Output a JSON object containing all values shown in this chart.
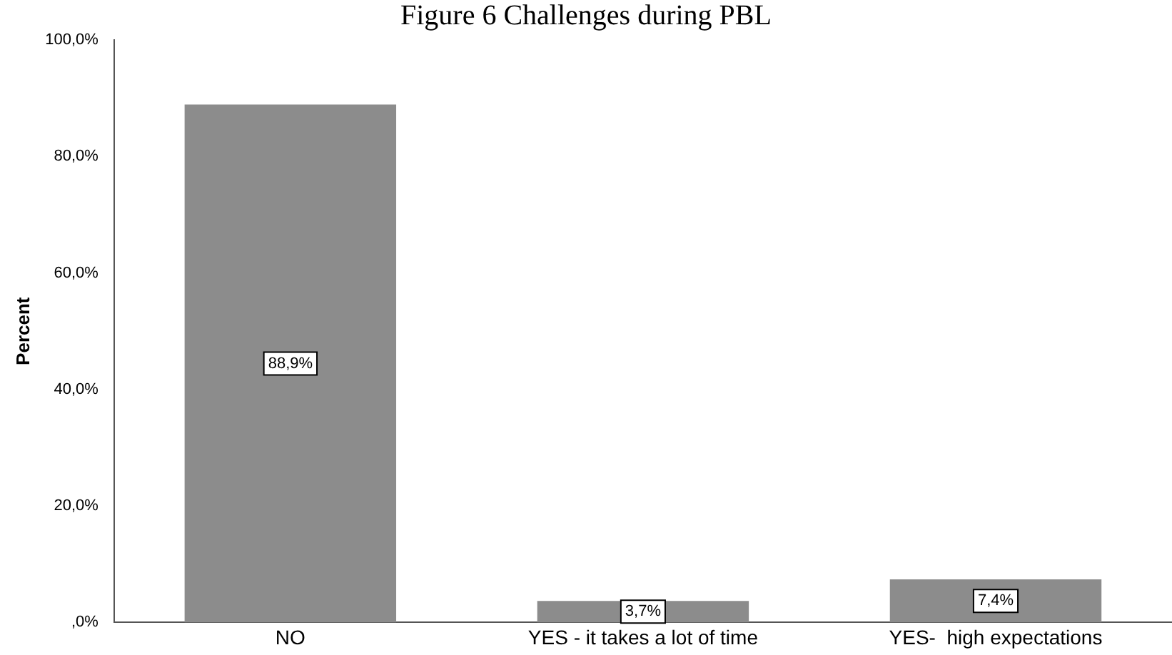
{
  "chart_data": {
    "type": "bar",
    "title": "Figure 6 Challenges during PBL",
    "ylabel": "Percent",
    "categories": [
      "NO",
      "YES - it takes a lot of time",
      "YES-  high expectations"
    ],
    "values": [
      88.9,
      3.7,
      7.4
    ],
    "color": "#8c8c8c",
    "value_labels": [
      "88,9%",
      "3,7%",
      "7,4%"
    ],
    "ylim": [
      0,
      100
    ],
    "yticks": [
      {
        "value": 0,
        "label": ",0%"
      },
      {
        "value": 20,
        "label": "20,0%"
      },
      {
        "value": 40,
        "label": "40,0%"
      },
      {
        "value": 60,
        "label": "60,0%"
      },
      {
        "value": 80,
        "label": "80,0%"
      },
      {
        "value": 100,
        "label": "100,0%"
      }
    ],
    "grid": false,
    "legend": false
  }
}
